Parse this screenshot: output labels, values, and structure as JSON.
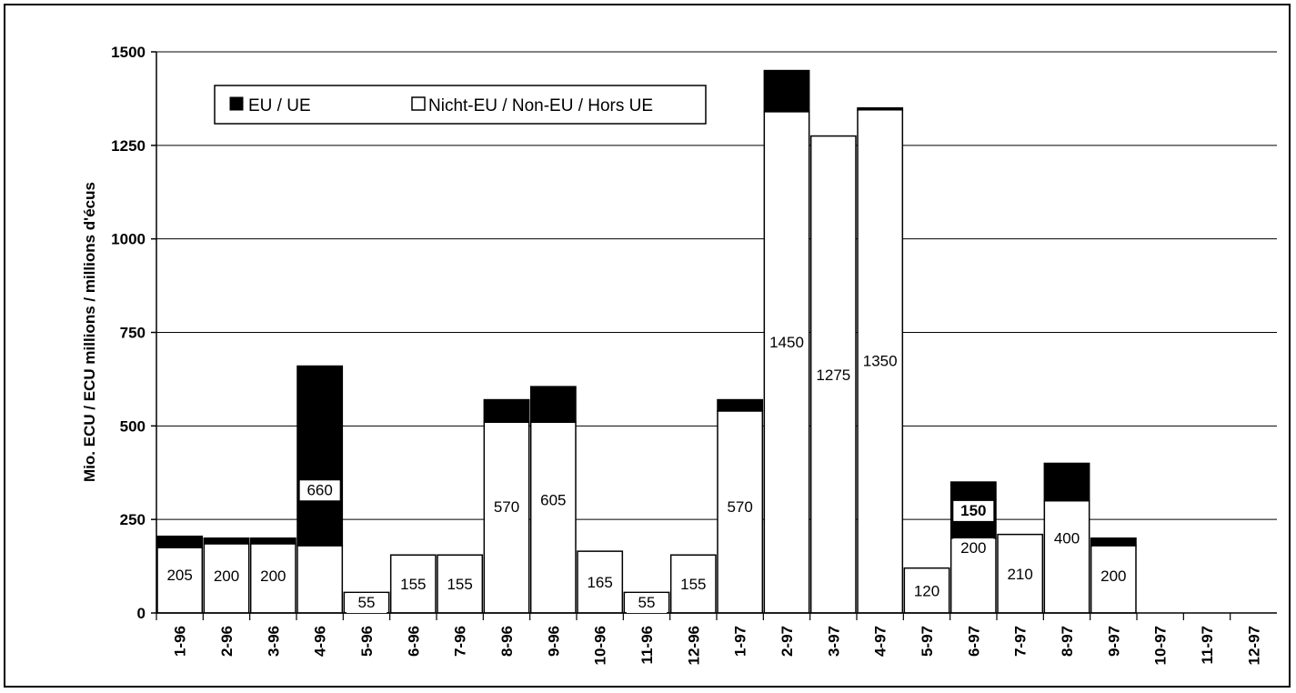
{
  "chart_data": {
    "type": "bar",
    "stacked": true,
    "title": "",
    "xlabel": "",
    "ylabel": "Mio. ECU / ECU millions / millions d'écus",
    "ylim": [
      0,
      1500
    ],
    "yticks": [
      0,
      250,
      500,
      750,
      1000,
      1250,
      1500
    ],
    "grid": true,
    "legend_position": "top-left",
    "categories": [
      "1-96",
      "2-96",
      "3-96",
      "4-96",
      "5-96",
      "6-96",
      "7-96",
      "8-96",
      "9-96",
      "10-96",
      "11-96",
      "12-96",
      "1-97",
      "2-97",
      "3-97",
      "4-97",
      "5-97",
      "6-97",
      "7-97",
      "8-97",
      "9-97",
      "10-97",
      "11-97",
      "12-97"
    ],
    "series": [
      {
        "name": "Nicht-EU / Non-EU / Hors UE",
        "color": "#ffffff",
        "values": [
          175,
          185,
          185,
          180,
          55,
          155,
          155,
          510,
          510,
          165,
          55,
          155,
          540,
          1340,
          1275,
          1345,
          120,
          200,
          210,
          300,
          180,
          null,
          null,
          null
        ]
      },
      {
        "name": "EU / UE",
        "color": "#000000",
        "values": [
          30,
          15,
          15,
          480,
          0,
          0,
          0,
          60,
          95,
          0,
          0,
          0,
          30,
          110,
          0,
          5,
          0,
          150,
          0,
          100,
          20,
          null,
          null,
          null
        ]
      }
    ],
    "labels": [
      "205",
      "200",
      "200",
      "660",
      "55",
      "155",
      "155",
      "570",
      "605",
      "165",
      "55",
      "155",
      "570",
      "1450",
      "1275",
      "1350",
      "120",
      "200",
      "210",
      "400",
      "200",
      "",
      "",
      ""
    ],
    "extra_labels": [
      {
        "category": "6-97",
        "text": "150"
      }
    ],
    "legend": {
      "eu_label": "EU / UE",
      "non_eu_label": "Nicht-EU / Non-EU / Hors UE"
    }
  }
}
